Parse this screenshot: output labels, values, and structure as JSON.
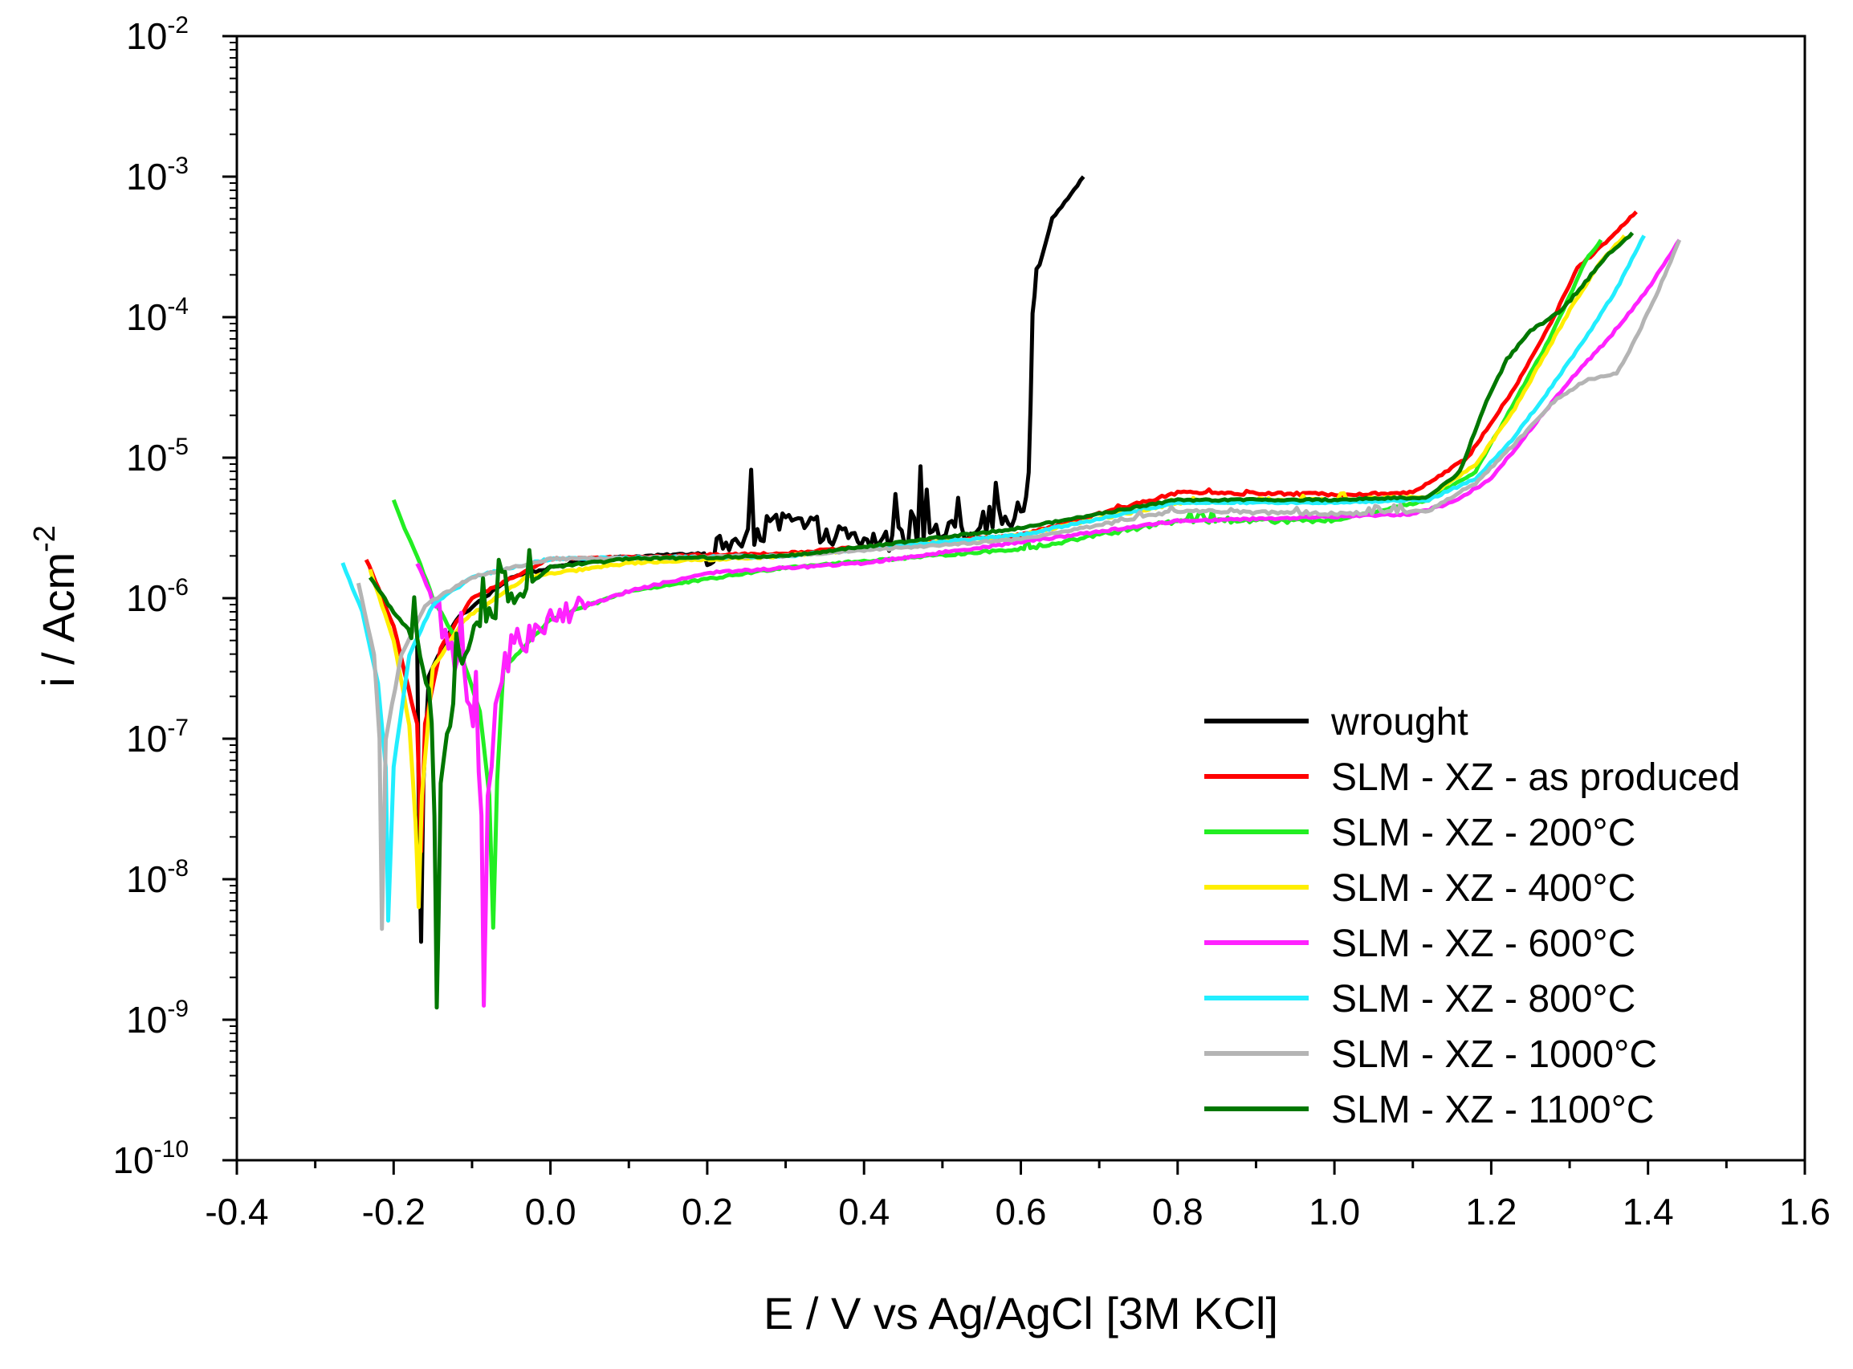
{
  "chart_data": {
    "type": "line",
    "title": "",
    "xlabel": "E / V vs Ag/AgCl [3M KCl]",
    "ylabel_main": "i / Acm",
    "ylabel_exp": "-2",
    "x_scale": "linear",
    "y_scale": "log",
    "xlim": [
      -0.4,
      1.6
    ],
    "ylim_log10": [
      -10,
      -2
    ],
    "x_ticks": [
      -0.4,
      -0.2,
      0.0,
      0.2,
      0.4,
      0.6,
      0.8,
      1.0,
      1.2,
      1.4,
      1.6
    ],
    "x_tick_labels": [
      "-0.4",
      "-0.2",
      "0.0",
      "0.2",
      "0.4",
      "0.6",
      "0.8",
      "1.0",
      "1.2",
      "1.4",
      "1.6"
    ],
    "y_ticks": [
      {
        "base": "10",
        "exp": "-2",
        "log": -2
      },
      {
        "base": "10",
        "exp": "-3",
        "log": -3
      },
      {
        "base": "10",
        "exp": "-4",
        "log": -4
      },
      {
        "base": "10",
        "exp": "-5",
        "log": -5
      },
      {
        "base": "10",
        "exp": "-6",
        "log": -6
      },
      {
        "base": "10",
        "exp": "-7",
        "log": -7
      },
      {
        "base": "10",
        "exp": "-8",
        "log": -8
      },
      {
        "base": "10",
        "exp": "-9",
        "log": -9
      },
      {
        "base": "10",
        "exp": "-10",
        "log": -10
      }
    ],
    "legend_position": "bottom-right",
    "series": [
      {
        "name": "wrought",
        "color": "#000000",
        "noise": 0.18,
        "noise_range": [
          0.2,
          0.62
        ],
        "points": [
          [
            -0.17,
            -6.3
          ],
          [
            -0.168,
            -7.4
          ],
          [
            -0.165,
            -8.45
          ],
          [
            -0.162,
            -7.3
          ],
          [
            -0.155,
            -6.55
          ],
          [
            -0.12,
            -6.15
          ],
          [
            -0.05,
            -5.85
          ],
          [
            0.05,
            -5.72
          ],
          [
            0.2,
            -5.68
          ],
          [
            0.3,
            -5.45
          ],
          [
            0.4,
            -5.6
          ],
          [
            0.5,
            -5.55
          ],
          [
            0.6,
            -5.4
          ],
          [
            0.61,
            -5.1
          ],
          [
            0.615,
            -4.0
          ],
          [
            0.62,
            -3.7
          ],
          [
            0.64,
            -3.3
          ],
          [
            0.66,
            -3.15
          ],
          [
            0.68,
            -3.0
          ]
        ]
      },
      {
        "name": "SLM - XZ - as produced",
        "color": "#ff0000",
        "noise": 0.02,
        "noise_range": [
          0.7,
          1.1
        ],
        "points": [
          [
            -0.235,
            -5.72
          ],
          [
            -0.2,
            -6.2
          ],
          [
            -0.17,
            -6.9
          ],
          [
            -0.165,
            -7.8
          ],
          [
            -0.16,
            -6.9
          ],
          [
            -0.14,
            -6.35
          ],
          [
            -0.1,
            -6.0
          ],
          [
            0.0,
            -5.72
          ],
          [
            0.3,
            -5.68
          ],
          [
            0.6,
            -5.55
          ],
          [
            0.8,
            -5.25
          ],
          [
            1.0,
            -5.26
          ],
          [
            1.1,
            -5.25
          ],
          [
            1.17,
            -5.0
          ],
          [
            1.23,
            -4.5
          ],
          [
            1.28,
            -4.0
          ],
          [
            1.31,
            -3.65
          ],
          [
            1.35,
            -3.45
          ],
          [
            1.385,
            -3.25
          ]
        ]
      },
      {
        "name": "SLM - XZ - 200°C",
        "color": "#22ee22",
        "noise": 0.03,
        "noise_range": [
          0.6,
          1.0
        ],
        "points": [
          [
            -0.2,
            -5.3
          ],
          [
            -0.19,
            -5.45
          ],
          [
            -0.17,
            -5.7
          ],
          [
            -0.15,
            -6.0
          ],
          [
            -0.12,
            -6.3
          ],
          [
            -0.09,
            -6.8
          ],
          [
            -0.078,
            -7.4
          ],
          [
            -0.073,
            -8.35
          ],
          [
            -0.068,
            -7.3
          ],
          [
            -0.06,
            -6.5
          ],
          [
            0.0,
            -6.15
          ],
          [
            0.1,
            -5.95
          ],
          [
            0.3,
            -5.78
          ],
          [
            0.6,
            -5.65
          ],
          [
            0.8,
            -5.45
          ],
          [
            1.0,
            -5.45
          ],
          [
            1.12,
            -5.3
          ],
          [
            1.18,
            -5.1
          ],
          [
            1.23,
            -4.6
          ],
          [
            1.27,
            -4.2
          ],
          [
            1.3,
            -3.85
          ],
          [
            1.32,
            -3.6
          ],
          [
            1.34,
            -3.45
          ]
        ]
      },
      {
        "name": "SLM - XZ - 400°C",
        "color": "#ffee00",
        "noise": 0.02,
        "noise_range": [
          0.7,
          1.1
        ],
        "points": [
          [
            -0.23,
            -5.8
          ],
          [
            -0.2,
            -6.3
          ],
          [
            -0.18,
            -6.9
          ],
          [
            -0.172,
            -7.6
          ],
          [
            -0.168,
            -8.2
          ],
          [
            -0.164,
            -7.4
          ],
          [
            -0.15,
            -6.5
          ],
          [
            -0.11,
            -6.15
          ],
          [
            -0.03,
            -5.85
          ],
          [
            0.1,
            -5.75
          ],
          [
            0.3,
            -5.7
          ],
          [
            0.6,
            -5.55
          ],
          [
            0.8,
            -5.32
          ],
          [
            1.0,
            -5.3
          ],
          [
            1.12,
            -5.28
          ],
          [
            1.18,
            -5.05
          ],
          [
            1.23,
            -4.65
          ],
          [
            1.27,
            -4.25
          ],
          [
            1.3,
            -3.95
          ],
          [
            1.34,
            -3.6
          ],
          [
            1.37,
            -3.42
          ]
        ]
      },
      {
        "name": "SLM - XZ - 600°C",
        "color": "#ff22ff",
        "noise": 0.22,
        "noise_range": [
          -0.15,
          0.05
        ],
        "points": [
          [
            -0.17,
            -5.75
          ],
          [
            -0.15,
            -6.0
          ],
          [
            -0.13,
            -6.3
          ],
          [
            -0.11,
            -6.6
          ],
          [
            -0.095,
            -7.0
          ],
          [
            -0.088,
            -7.6
          ],
          [
            -0.085,
            -8.9
          ],
          [
            -0.08,
            -7.5
          ],
          [
            -0.07,
            -6.7
          ],
          [
            -0.05,
            -6.35
          ],
          [
            0.0,
            -6.15
          ],
          [
            0.1,
            -5.95
          ],
          [
            0.2,
            -5.82
          ],
          [
            0.4,
            -5.75
          ],
          [
            0.6,
            -5.6
          ],
          [
            0.8,
            -5.45
          ],
          [
            1.0,
            -5.42
          ],
          [
            1.1,
            -5.4
          ],
          [
            1.15,
            -5.32
          ],
          [
            1.2,
            -5.15
          ],
          [
            1.25,
            -4.8
          ],
          [
            1.3,
            -4.45
          ],
          [
            1.35,
            -4.15
          ],
          [
            1.4,
            -3.8
          ],
          [
            1.44,
            -3.45
          ]
        ]
      },
      {
        "name": "SLM - XZ - 800°C",
        "color": "#22eeff",
        "noise": 0.01,
        "noise_range": [
          0.7,
          1.1
        ],
        "points": [
          [
            -0.265,
            -5.75
          ],
          [
            -0.24,
            -6.1
          ],
          [
            -0.22,
            -6.6
          ],
          [
            -0.21,
            -7.2
          ],
          [
            -0.207,
            -8.3
          ],
          [
            -0.2,
            -7.2
          ],
          [
            -0.18,
            -6.4
          ],
          [
            -0.15,
            -6.05
          ],
          [
            -0.1,
            -5.85
          ],
          [
            0.0,
            -5.72
          ],
          [
            0.3,
            -5.7
          ],
          [
            0.6,
            -5.55
          ],
          [
            0.8,
            -5.32
          ],
          [
            1.0,
            -5.32
          ],
          [
            1.12,
            -5.3
          ],
          [
            1.18,
            -5.15
          ],
          [
            1.23,
            -4.85
          ],
          [
            1.27,
            -4.55
          ],
          [
            1.32,
            -4.15
          ],
          [
            1.36,
            -3.8
          ],
          [
            1.395,
            -3.42
          ]
        ]
      },
      {
        "name": "SLM - XZ - 1000°C",
        "color": "#b4b4b4",
        "noise": 0.02,
        "noise_range": [
          0.7,
          1.1
        ],
        "points": [
          [
            -0.245,
            -5.9
          ],
          [
            -0.225,
            -6.4
          ],
          [
            -0.218,
            -7.0
          ],
          [
            -0.215,
            -8.35
          ],
          [
            -0.21,
            -7.0
          ],
          [
            -0.19,
            -6.4
          ],
          [
            -0.16,
            -6.05
          ],
          [
            -0.1,
            -5.85
          ],
          [
            0.0,
            -5.72
          ],
          [
            0.3,
            -5.7
          ],
          [
            0.6,
            -5.58
          ],
          [
            0.8,
            -5.38
          ],
          [
            1.0,
            -5.4
          ],
          [
            1.12,
            -5.38
          ],
          [
            1.18,
            -5.18
          ],
          [
            1.23,
            -4.9
          ],
          [
            1.28,
            -4.6
          ],
          [
            1.32,
            -4.45
          ],
          [
            1.36,
            -4.4
          ],
          [
            1.38,
            -4.2
          ],
          [
            1.41,
            -3.85
          ],
          [
            1.44,
            -3.45
          ]
        ]
      },
      {
        "name": "SLM - XZ - 1100°C",
        "color": "#007700",
        "noise": 0.16,
        "noise_range": [
          -0.18,
          -0.02
        ],
        "points": [
          [
            -0.23,
            -5.85
          ],
          [
            -0.2,
            -6.1
          ],
          [
            -0.17,
            -6.3
          ],
          [
            -0.155,
            -6.6
          ],
          [
            -0.148,
            -7.5
          ],
          [
            -0.145,
            -8.95
          ],
          [
            -0.14,
            -7.4
          ],
          [
            -0.12,
            -6.5
          ],
          [
            -0.09,
            -6.2
          ],
          [
            -0.05,
            -6.0
          ],
          [
            0.0,
            -5.78
          ],
          [
            0.1,
            -5.72
          ],
          [
            0.3,
            -5.7
          ],
          [
            0.6,
            -5.5
          ],
          [
            0.8,
            -5.3
          ],
          [
            1.0,
            -5.3
          ],
          [
            1.12,
            -5.28
          ],
          [
            1.16,
            -5.1
          ],
          [
            1.19,
            -4.65
          ],
          [
            1.22,
            -4.3
          ],
          [
            1.25,
            -4.1
          ],
          [
            1.29,
            -3.95
          ],
          [
            1.32,
            -3.75
          ],
          [
            1.35,
            -3.55
          ],
          [
            1.38,
            -3.4
          ]
        ]
      }
    ]
  }
}
